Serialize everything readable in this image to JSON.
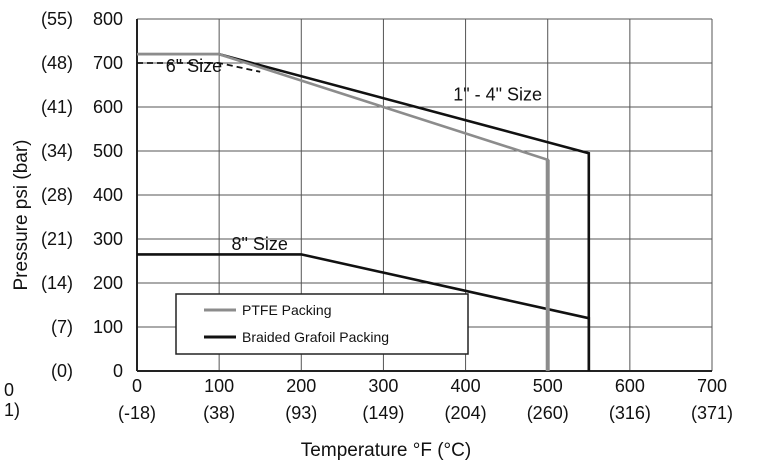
{
  "chart_data": {
    "type": "line",
    "title": "",
    "xlabel": "Temperature °F (°C)",
    "ylabel": "Pressure psi (bar)",
    "xlim": [
      0,
      700
    ],
    "ylim": [
      0,
      800
    ],
    "grid": true,
    "legend_position": "bottom-left",
    "x_ticks": [
      {
        "value": 0,
        "label": "0",
        "sublabel": "(-18)"
      },
      {
        "value": 100,
        "label": "100",
        "sublabel": "(38)"
      },
      {
        "value": 200,
        "label": "200",
        "sublabel": "(93)"
      },
      {
        "value": 300,
        "label": "300",
        "sublabel": "(149)"
      },
      {
        "value": 400,
        "label": "400",
        "sublabel": "(204)"
      },
      {
        "value": 500,
        "label": "500",
        "sublabel": "(260)"
      },
      {
        "value": 600,
        "label": "600",
        "sublabel": "(316)"
      },
      {
        "value": 700,
        "label": "700",
        "sublabel": "(371)"
      }
    ],
    "y_ticks": [
      {
        "value": 0,
        "label": "(0)",
        "psi": "0"
      },
      {
        "value": 100,
        "label": "(7)",
        "psi": "100"
      },
      {
        "value": 200,
        "label": "(14)",
        "psi": "200"
      },
      {
        "value": 300,
        "label": "(21)",
        "psi": "300"
      },
      {
        "value": 400,
        "label": "(28)",
        "psi": "400"
      },
      {
        "value": 500,
        "label": "(34)",
        "psi": "500"
      },
      {
        "value": 600,
        "label": "(41)",
        "psi": "600"
      },
      {
        "value": 700,
        "label": "(48)",
        "psi": "700"
      },
      {
        "value": 800,
        "label": "(55)",
        "psi": "800"
      }
    ],
    "stray_labels": [
      "0",
      "1)"
    ],
    "series": [
      {
        "name": "PTFE Packing",
        "color": "#8c8c8c",
        "style": "solid",
        "points": [
          [
            0,
            720
          ],
          [
            100,
            720
          ],
          [
            500,
            480
          ],
          [
            500,
            0
          ]
        ]
      },
      {
        "name": "Braided Grafoil Packing",
        "color": "#111111",
        "style": "solid",
        "points": [
          [
            0,
            720
          ],
          [
            100,
            720
          ],
          [
            550,
            495
          ],
          [
            550,
            0
          ]
        ]
      },
      {
        "name": "",
        "color": "#111111",
        "style": "dashed",
        "points": [
          [
            0,
            700
          ],
          [
            100,
            700
          ],
          [
            150,
            680
          ]
        ]
      },
      {
        "name": "",
        "color": "#111111",
        "style": "solid",
        "points": [
          [
            0,
            265
          ],
          [
            200,
            265
          ],
          [
            550,
            120
          ],
          [
            550,
            0
          ]
        ]
      }
    ],
    "annotations": [
      {
        "text": "6\" Size",
        "x": 35,
        "y": 680
      },
      {
        "text": "1\" - 4\" Size",
        "x": 385,
        "y": 615
      },
      {
        "text": "8\" Size",
        "x": 115,
        "y": 275
      }
    ]
  }
}
